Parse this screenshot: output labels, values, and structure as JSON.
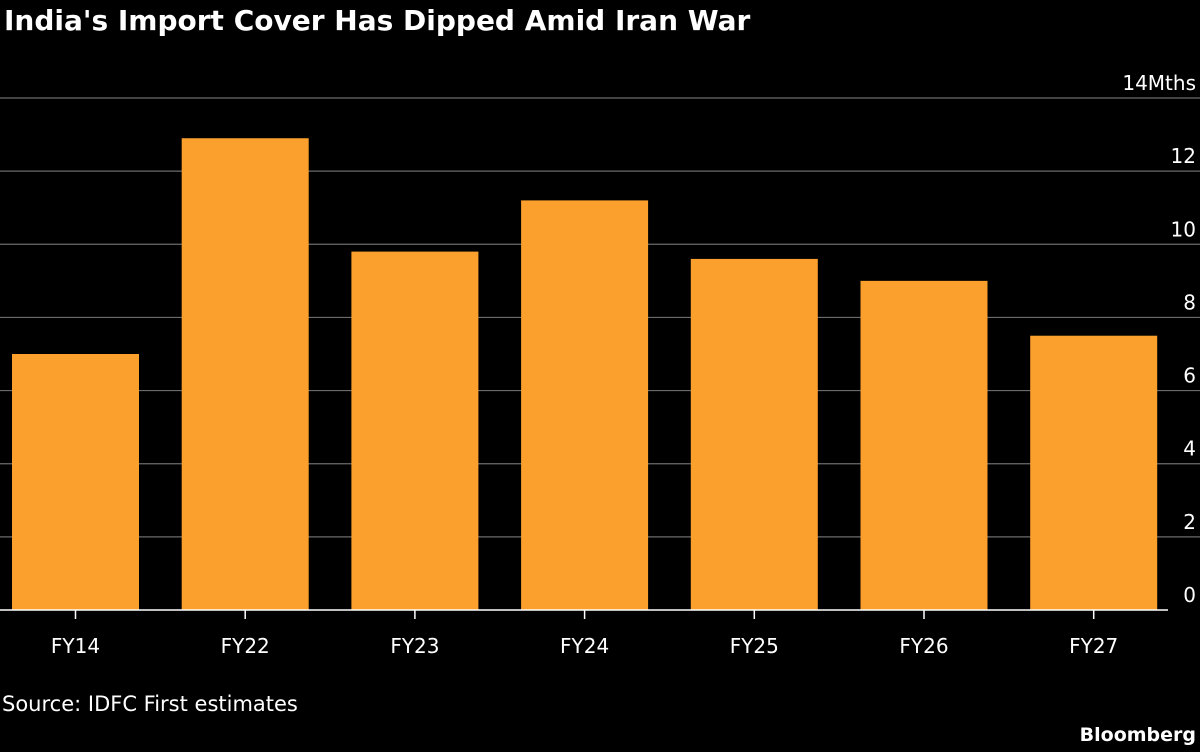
{
  "header": {
    "title": "India's Import Cover Has Dipped Amid Iran War"
  },
  "footer": {
    "source": "Source: IDFC First estimates",
    "brand": "Bloomberg"
  },
  "colors": {
    "background": "#000000",
    "bar": "#fba02d",
    "grid": "#6b6b6b",
    "text": "#ffffff"
  },
  "chart_data": {
    "type": "bar",
    "title": "India's Import Cover Has Dipped Amid Iran War",
    "xlabel": "",
    "ylabel": "",
    "unit": "Mths",
    "categories": [
      "FY14",
      "FY22",
      "FY23",
      "FY24",
      "FY25",
      "FY26",
      "FY27"
    ],
    "values": [
      7.0,
      12.9,
      9.8,
      11.2,
      9.6,
      9.0,
      7.5
    ],
    "ylim": [
      0,
      14
    ],
    "yticks": [
      0,
      2,
      4,
      6,
      8,
      10,
      12,
      14
    ],
    "ytick_labels": [
      "0",
      "2",
      "4",
      "6",
      "8",
      "10",
      "12",
      "14Mths"
    ],
    "grid": true,
    "y_axis_side": "right",
    "legend": "none"
  }
}
